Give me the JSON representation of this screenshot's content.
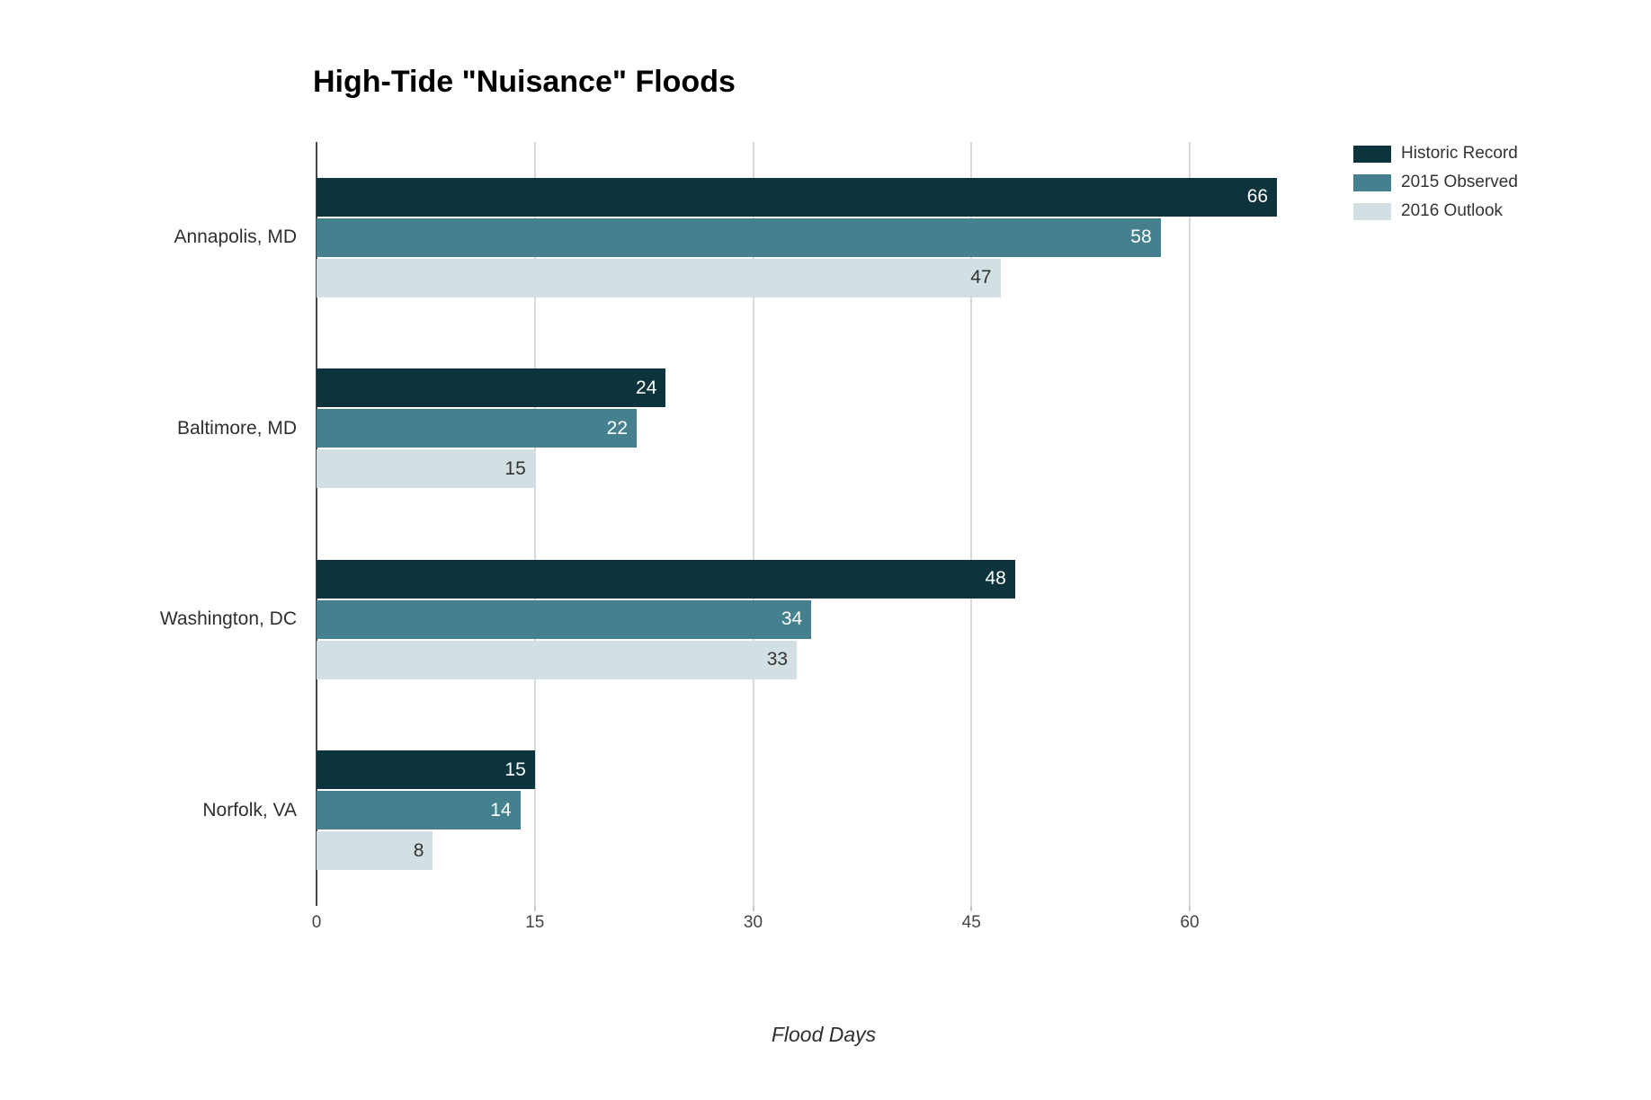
{
  "title": "High-Tide \"Nuisance\" Floods",
  "chart_data": {
    "type": "bar",
    "orientation": "horizontal",
    "title": "High-Tide \"Nuisance\" Floods",
    "xlabel": "Flood Days",
    "ylabel": "",
    "categories": [
      "Annapolis, MD",
      "Baltimore, MD",
      "Washington, DC",
      "Norfolk, VA"
    ],
    "series": [
      {
        "name": "Historic Record",
        "color": "#0d343d",
        "label_color": "#ffffff",
        "values": [
          66,
          24,
          48,
          15
        ]
      },
      {
        "name": "2015 Observed",
        "color": "#45808e",
        "label_color": "#ffffff",
        "values": [
          58,
          22,
          34,
          14
        ]
      },
      {
        "name": "2016 Outlook",
        "color": "#d2e0e4",
        "label_color": "#333333",
        "values": [
          47,
          15,
          33,
          8
        ]
      }
    ],
    "x_ticks": [
      0,
      15,
      30,
      45,
      60
    ],
    "xlim": [
      0,
      60
    ],
    "grid": true,
    "legend_position": "top-right",
    "value_labels": "inside-end"
  },
  "colors": {
    "background": "#ffffff",
    "gridline": "#d9d9d9",
    "axis_line": "#444444",
    "title_text": "#000000",
    "label_text": "#2f2f2f",
    "tick_text": "#444444"
  }
}
